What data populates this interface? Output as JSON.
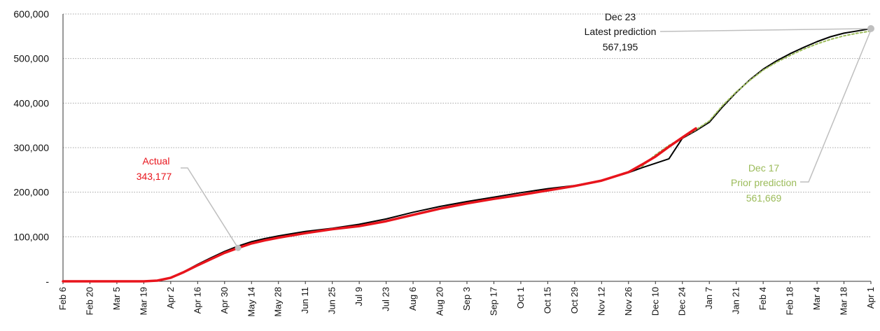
{
  "chart_data": {
    "type": "line",
    "title": "",
    "xlabel": "",
    "ylabel": "",
    "ylim": [
      0,
      600000
    ],
    "yticks": [
      {
        "value": 0,
        "label": "-"
      },
      {
        "value": 100000,
        "label": "100,000"
      },
      {
        "value": 200000,
        "label": "200,000"
      },
      {
        "value": 300000,
        "label": "300,000"
      },
      {
        "value": 400000,
        "label": "400,000"
      },
      {
        "value": 500000,
        "label": "500,000"
      },
      {
        "value": 600000,
        "label": "600,000"
      }
    ],
    "xticks": [
      "Feb 6",
      "Feb 20",
      "Mar 5",
      "Mar 19",
      "Apr 2",
      "Apr 16",
      "Apr 30",
      "May 14",
      "May 28",
      "Jun 11",
      "Jun 25",
      "Jul 9",
      "Jul 23",
      "Aug 6",
      "Aug 20",
      "Sep 3",
      "Sep 17",
      "Oct 1",
      "Oct 15",
      "Oct 29",
      "Nov 12",
      "Nov 26",
      "Dec 10",
      "Dec 24",
      "Jan 7",
      "Jan 21",
      "Feb 4",
      "Feb 18",
      "Mar 4",
      "Mar 18",
      "Apr 1"
    ],
    "grid": true,
    "colors": {
      "actual": "#e8141c",
      "latest": "#000000",
      "prior": "#9bbb59",
      "marker": "#bfbfbf",
      "grid": "#a6a6a6"
    },
    "series": [
      {
        "key": "latest",
        "x": [
          "Feb 6",
          "Mar 19",
          "Mar 26",
          "Apr 2",
          "Apr 9",
          "Apr 16",
          "Apr 23",
          "Apr 30",
          "May 7",
          "May 14",
          "May 21",
          "May 28",
          "Jun 4",
          "Jun 11",
          "Jun 25",
          "Jul 9",
          "Jul 23",
          "Aug 6",
          "Aug 20",
          "Sep 3",
          "Sep 17",
          "Oct 1",
          "Oct 15",
          "Oct 29",
          "Nov 12",
          "Nov 26",
          "Dec 3",
          "Dec 10",
          "Dec 17",
          "Dec 24",
          "Dec 31",
          "Jan 7",
          "Jan 14",
          "Jan 21",
          "Jan 28",
          "Feb 4",
          "Feb 11",
          "Feb 18",
          "Feb 25",
          "Mar 4",
          "Mar 11",
          "Mar 18",
          "Mar 25",
          "Apr 1"
        ],
        "values": [
          0,
          0,
          1500,
          8000,
          22000,
          38000,
          53000,
          67000,
          79000,
          89000,
          96000,
          102000,
          107000,
          112000,
          119000,
          128000,
          140000,
          155000,
          168000,
          179000,
          189000,
          199000,
          208000,
          215000,
          226000,
          244000,
          255000,
          265000,
          275000,
          321000,
          338000,
          357000,
          392000,
          424000,
          452000,
          476000,
          495000,
          511000,
          525000,
          538000,
          549000,
          557000,
          562000,
          567195
        ]
      },
      {
        "key": "prior",
        "x": [
          "Dec 3",
          "Dec 10",
          "Dec 17",
          "Dec 24",
          "Dec 31",
          "Jan 7",
          "Jan 14",
          "Jan 21",
          "Jan 28",
          "Feb 4",
          "Feb 11",
          "Feb 18",
          "Feb 25",
          "Mar 4",
          "Mar 11",
          "Mar 18",
          "Mar 25",
          "Apr 1"
        ],
        "values": [
          258000,
          284000,
          305000,
          322000,
          340000,
          360000,
          395000,
          425000,
          451000,
          474000,
          492000,
          507000,
          521000,
          533000,
          543000,
          551000,
          557000,
          561669
        ]
      },
      {
        "key": "actual",
        "x": [
          "Feb 6",
          "Mar 19",
          "Mar 26",
          "Apr 2",
          "Apr 9",
          "Apr 16",
          "Apr 23",
          "Apr 30",
          "May 7",
          "May 14",
          "May 21",
          "May 28",
          "Jun 11",
          "Jun 25",
          "Jul 9",
          "Jul 23",
          "Aug 6",
          "Aug 20",
          "Sep 3",
          "Sep 17",
          "Oct 1",
          "Oct 15",
          "Oct 29",
          "Nov 12",
          "Nov 26",
          "Dec 3",
          "Dec 10",
          "Dec 17",
          "Dec 24",
          "Dec 31"
        ],
        "values": [
          0,
          0,
          1500,
          8000,
          21000,
          36000,
          50000,
          64000,
          75000,
          85000,
          92000,
          98000,
          108000,
          117000,
          124000,
          135000,
          149000,
          163000,
          175000,
          185000,
          194000,
          204000,
          214000,
          226000,
          245000,
          262000,
          280000,
          302000,
          323000,
          343177
        ]
      }
    ],
    "annotations": {
      "actual": {
        "label": "Actual",
        "value": "343,177",
        "at": "May 7"
      },
      "latest": {
        "date": "Dec 23",
        "label": "Latest prediction",
        "value": "567,195"
      },
      "prior": {
        "date": "Dec 17",
        "label": "Prior prediction",
        "value": "561,669"
      }
    }
  }
}
